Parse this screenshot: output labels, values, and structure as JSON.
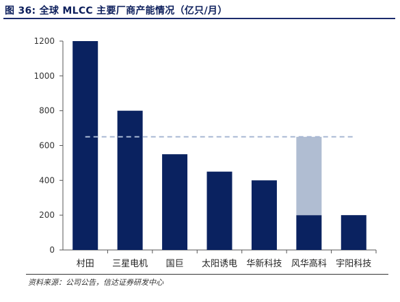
{
  "title": "图 36: 全球 MLCC 主要厂商产能情况（亿只/月）",
  "source": "资料来源：公司公告，信达证券研发中心",
  "chart_data": {
    "type": "bar",
    "categories": [
      "村田",
      "三星电机",
      "国巨",
      "太阳诱电",
      "华新科技",
      "风华高科",
      "宇阳科技"
    ],
    "series": [
      {
        "values": [
          1200,
          800,
          550,
          450,
          400,
          200,
          200
        ],
        "color": "#0a2260"
      },
      {
        "values": [
          0,
          0,
          0,
          0,
          0,
          450,
          0
        ],
        "color": "#b0bdd2"
      }
    ],
    "stacked": true,
    "reference_line": {
      "value": 650,
      "style": "dashed",
      "color": "#a8b8d4"
    },
    "ylim": [
      0,
      1200
    ],
    "yticks": [
      0,
      200,
      400,
      600,
      800,
      1000,
      1200
    ],
    "grid": false,
    "title": "",
    "xlabel": "",
    "ylabel": ""
  }
}
